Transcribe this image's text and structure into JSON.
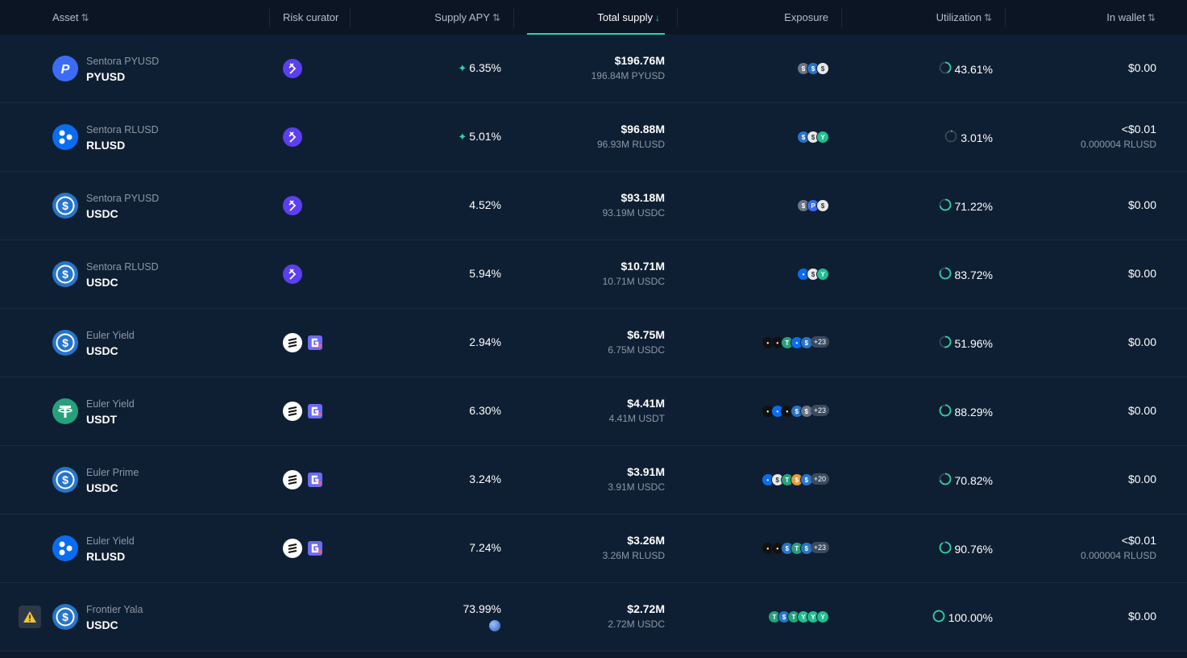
{
  "header": {
    "asset": "Asset",
    "risk_curator": "Risk curator",
    "supply_apy": "Supply APY",
    "total_supply": "Total supply",
    "exposure": "Exposure",
    "utilization": "Utilization",
    "in_wallet": "In wallet",
    "sort_icon": "⇅",
    "active_sort_icon": "↓"
  },
  "colors": {
    "accent": "#2fd3a8",
    "usdc": "#2775ca",
    "rlusd": "#0a6cf0",
    "pyusd": "#3b6cf6",
    "usdt": "#26a17b",
    "warning": "#f2c230"
  },
  "rows": [
    {
      "vault": "Sentora PYUSD",
      "symbol": "PYUSD",
      "icon": "pyusd-icon",
      "curators": [
        "sentora-icon"
      ],
      "apy": "6.35%",
      "apy_boost": true,
      "total_supply": "$196.76M",
      "total_supply_sub": "196.84M PYUSD",
      "exposure": [
        "gray",
        "usdc",
        "white"
      ],
      "exposure_more": "",
      "utilization": "43.61%",
      "util_value": 0.4361,
      "wallet": "$0.00",
      "wallet_sub": ""
    },
    {
      "vault": "Sentora RLUSD",
      "symbol": "RLUSD",
      "icon": "rlusd-icon",
      "curators": [
        "sentora-icon"
      ],
      "apy": "5.01%",
      "apy_boost": true,
      "total_supply": "$96.88M",
      "total_supply_sub": "96.93M RLUSD",
      "exposure": [
        "usdc",
        "white",
        "green"
      ],
      "exposure_more": "",
      "utilization": "3.01%",
      "util_value": 0.0301,
      "wallet": "<$0.01",
      "wallet_sub": "0.000004 RLUSD"
    },
    {
      "vault": "Sentora PYUSD",
      "symbol": "USDC",
      "icon": "usdc-icon",
      "curators": [
        "sentora-icon"
      ],
      "apy": "4.52%",
      "apy_boost": false,
      "total_supply": "$93.18M",
      "total_supply_sub": "93.19M USDC",
      "exposure": [
        "gray",
        "pyusd",
        "white"
      ],
      "exposure_more": "",
      "utilization": "71.22%",
      "util_value": 0.7122,
      "wallet": "$0.00",
      "wallet_sub": ""
    },
    {
      "vault": "Sentora RLUSD",
      "symbol": "USDC",
      "icon": "usdc-icon",
      "curators": [
        "sentora-icon"
      ],
      "apy": "5.94%",
      "apy_boost": false,
      "total_supply": "$10.71M",
      "total_supply_sub": "10.71M USDC",
      "exposure": [
        "rlusd",
        "white",
        "green"
      ],
      "exposure_more": "",
      "utilization": "83.72%",
      "util_value": 0.8372,
      "wallet": "$0.00",
      "wallet_sub": ""
    },
    {
      "vault": "Euler Yield",
      "symbol": "USDC",
      "icon": "usdc-icon",
      "curators": [
        "euler-icon",
        "gauntlet-icon"
      ],
      "apy": "2.94%",
      "apy_boost": false,
      "total_supply": "$6.75M",
      "total_supply_sub": "6.75M USDC",
      "exposure": [
        "black",
        "black",
        "usdt",
        "rlusd",
        "usdc"
      ],
      "exposure_more": "+23",
      "utilization": "51.96%",
      "util_value": 0.5196,
      "wallet": "$0.00",
      "wallet_sub": ""
    },
    {
      "vault": "Euler Yield",
      "symbol": "USDT",
      "icon": "usdt-icon",
      "curators": [
        "euler-icon",
        "gauntlet-icon"
      ],
      "apy": "6.30%",
      "apy_boost": false,
      "total_supply": "$4.41M",
      "total_supply_sub": "4.41M USDT",
      "exposure": [
        "black",
        "rlusd",
        "black",
        "usdc",
        "gray"
      ],
      "exposure_more": "+23",
      "utilization": "88.29%",
      "util_value": 0.8829,
      "wallet": "$0.00",
      "wallet_sub": ""
    },
    {
      "vault": "Euler Prime",
      "symbol": "USDC",
      "icon": "usdc-icon",
      "curators": [
        "euler-icon",
        "gauntlet-icon"
      ],
      "apy": "3.24%",
      "apy_boost": false,
      "total_supply": "$3.91M",
      "total_supply_sub": "3.91M USDC",
      "exposure": [
        "rlusd",
        "white",
        "usdt",
        "orange",
        "usdc"
      ],
      "exposure_more": "+20",
      "utilization": "70.82%",
      "util_value": 0.7082,
      "wallet": "$0.00",
      "wallet_sub": ""
    },
    {
      "vault": "Euler Yield",
      "symbol": "RLUSD",
      "icon": "rlusd-icon",
      "curators": [
        "euler-icon",
        "gauntlet-icon"
      ],
      "apy": "7.24%",
      "apy_boost": false,
      "total_supply": "$3.26M",
      "total_supply_sub": "3.26M RLUSD",
      "exposure": [
        "black",
        "black",
        "usdc",
        "usdt",
        "usdc"
      ],
      "exposure_more": "+23",
      "utilization": "90.76%",
      "util_value": 0.9076,
      "wallet": "<$0.01",
      "wallet_sub": "0.000004 RLUSD"
    },
    {
      "vault": "Frontier Yala",
      "symbol": "USDC",
      "icon": "usdc-icon",
      "curators": [],
      "apy": "73.99%",
      "apy_boost": false,
      "apy_globe": true,
      "warning": true,
      "total_supply": "$2.72M",
      "total_supply_sub": "2.72M USDC",
      "exposure": [
        "usdt",
        "usdc",
        "usdt",
        "green",
        "green",
        "green"
      ],
      "exposure_more": "",
      "utilization": "100.00%",
      "util_value": 1.0,
      "wallet": "$0.00",
      "wallet_sub": ""
    }
  ]
}
